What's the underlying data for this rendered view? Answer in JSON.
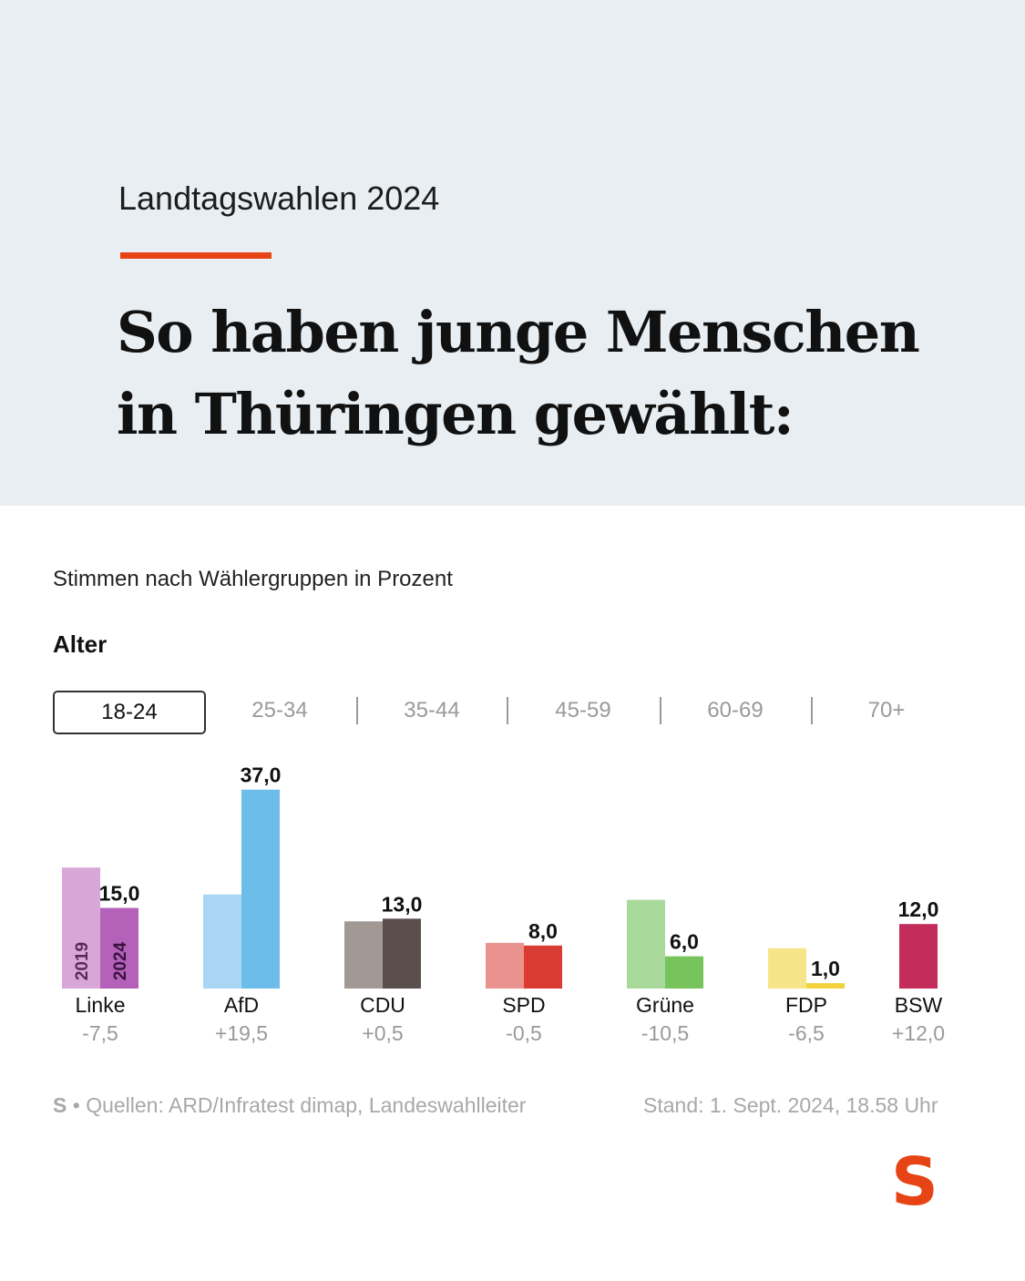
{
  "header": {
    "kicker": "Landtagswahlen 2024",
    "headline": "So haben junge Menschen in Thüringen gewählt:",
    "accent_color": "#e64415",
    "background": "#e9eef2"
  },
  "chart_section": {
    "subtitle": "Stimmen nach Wählergruppen in Prozent",
    "group_label": "Alter",
    "tabs": [
      "18-24",
      "25-34",
      "35-44",
      "45-59",
      "60-69",
      "70+"
    ],
    "active_tab": "18-24"
  },
  "chart_data": {
    "type": "bar",
    "title": "Stimmen nach Wählergruppen in Prozent",
    "age_group": "18-24",
    "categories": [
      "Linke",
      "AfD",
      "CDU",
      "SPD",
      "Grüne",
      "FDP",
      "BSW"
    ],
    "series": [
      {
        "name": "2019",
        "values": [
          22.5,
          17.5,
          12.5,
          8.5,
          16.5,
          7.5,
          null
        ]
      },
      {
        "name": "2024",
        "values": [
          15.0,
          37.0,
          13.0,
          8.0,
          6.0,
          1.0,
          12.0
        ]
      }
    ],
    "value_labels": [
      "15,0",
      "37,0",
      "13,0",
      "8,0",
      "6,0",
      "1,0",
      "12,0"
    ],
    "changes": [
      "-7,5",
      "+19,5",
      "+0,5",
      "-0,5",
      "-10,5",
      "-6,5",
      "+12,0"
    ],
    "colors_2019": [
      "#d8a7d8",
      "#a9d6f2",
      "#a29995",
      "#ea928d",
      "#a9d99a",
      "#f6e488",
      "#c22d5b"
    ],
    "colors_2024": [
      "#b461ba",
      "#6cbde9",
      "#5b4f4b",
      "#d93c33",
      "#78c45c",
      "#f1d23c",
      "#c22d5b"
    ],
    "series_labels": [
      "2019",
      "2024"
    ],
    "ylim": [
      0,
      40
    ]
  },
  "footer": {
    "logo_mark": "S",
    "separator": "•",
    "source": "Quellen: ARD/Infratest dimap, Landeswahlleiter",
    "stand": "Stand: 1. Sept. 2024, 18.58 Uhr"
  },
  "logo": {
    "mark": "S",
    "color": "#e64415"
  }
}
